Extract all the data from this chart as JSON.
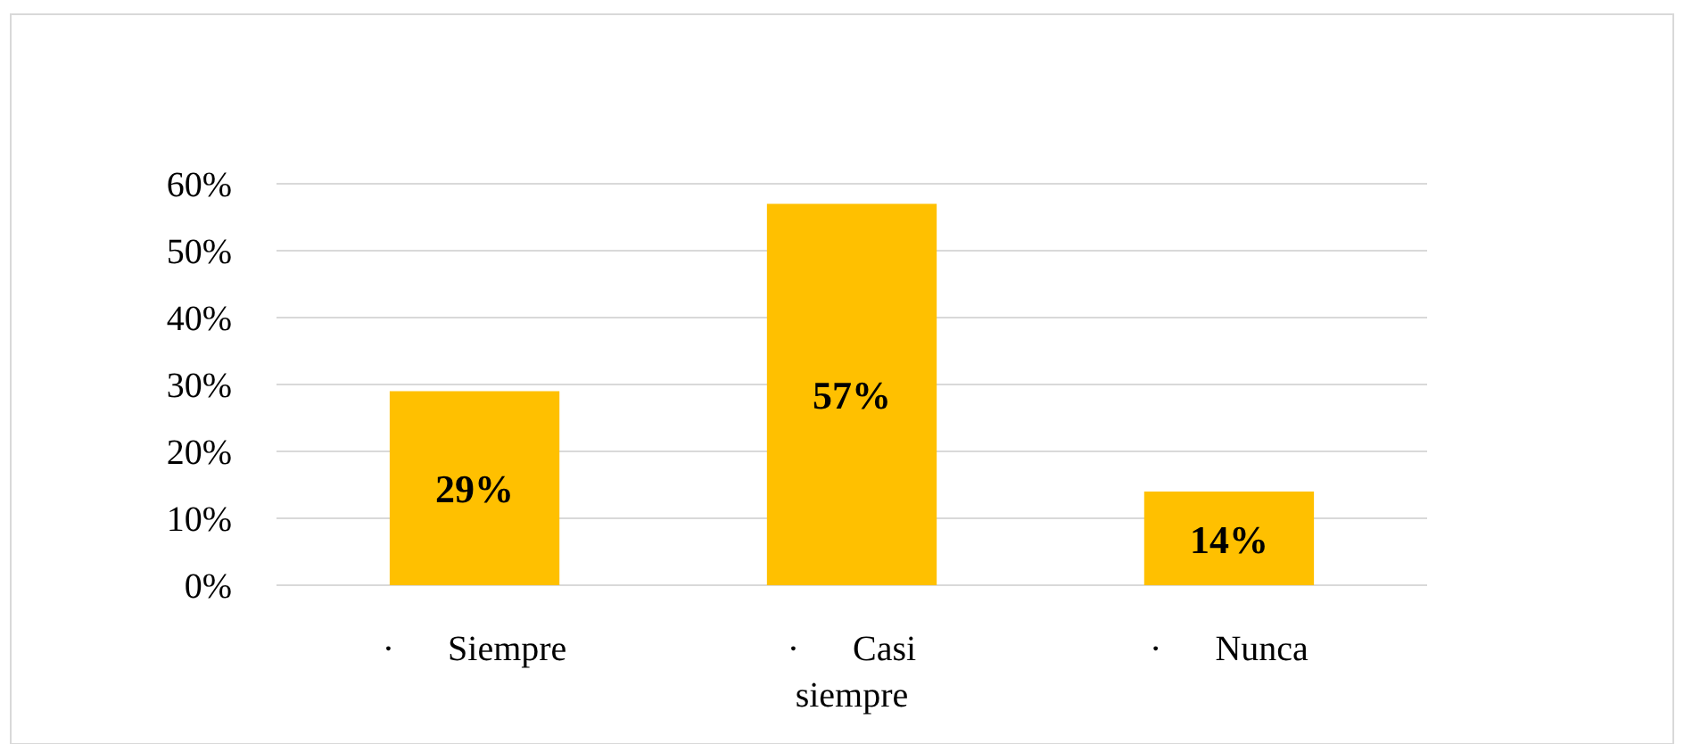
{
  "chart_data": {
    "type": "bar",
    "categories": [
      "·      Siempre",
      "·      Casi siempre",
      "·      Nunca"
    ],
    "values": [
      29,
      57,
      14
    ],
    "color": "#ffc000",
    "value_labels": [
      "29%",
      "57%",
      "14%"
    ],
    "ylim": [
      0,
      60
    ],
    "yticks": [
      {
        "value": 0,
        "label": "0%"
      },
      {
        "value": 10,
        "label": "10%"
      },
      {
        "value": 20,
        "label": "20%"
      },
      {
        "value": 30,
        "label": "30%"
      },
      {
        "value": 40,
        "label": "40%"
      },
      {
        "value": 50,
        "label": "50%"
      },
      {
        "value": 60,
        "label": "60%"
      }
    ],
    "grid": "y"
  }
}
